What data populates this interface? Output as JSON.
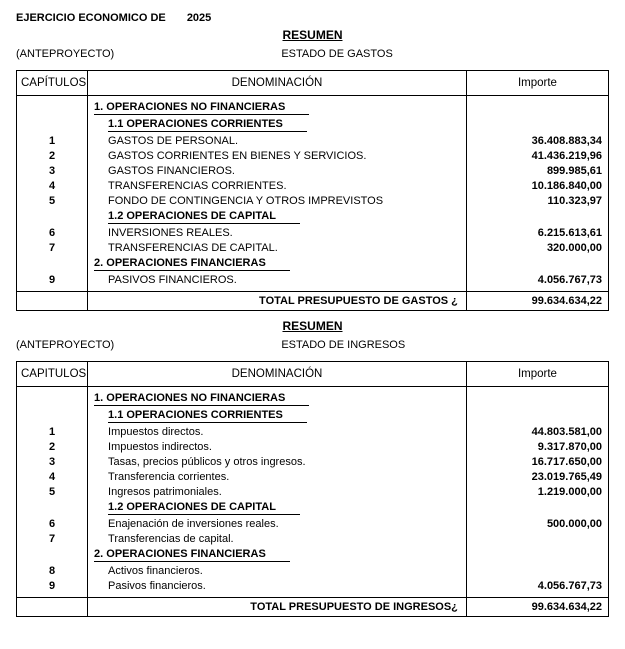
{
  "header": {
    "exercise_label": "EJERCICIO ECONOMICO DE",
    "year": "2025",
    "resumen": "RESUMEN",
    "anteproyecto": "(ANTEPROYECTO)"
  },
  "columns": {
    "cap": "CAPÍTULOS",
    "cap2": "CAPITULOS",
    "den": "DENOMINACIÓN",
    "imp": "Importe"
  },
  "gastos": {
    "estado": "ESTADO DE GASTOS",
    "rows": [
      {
        "type": "h0",
        "label": "1. OPERACIONES NO FINANCIERAS"
      },
      {
        "type": "h1",
        "label": "1.1 OPERACIONES CORRIENTES"
      },
      {
        "type": "item",
        "cap": "1",
        "label": "GASTOS DE PERSONAL.",
        "amount": "36.408.883,34"
      },
      {
        "type": "item",
        "cap": "2",
        "label": "GASTOS CORRIENTES EN BIENES Y SERVICIOS.",
        "amount": "41.436.219,96"
      },
      {
        "type": "item",
        "cap": "3",
        "label": "GASTOS FINANCIEROS.",
        "amount": "899.985,61"
      },
      {
        "type": "item",
        "cap": "4",
        "label": "TRANSFERENCIAS CORRIENTES.",
        "amount": "10.186.840,00"
      },
      {
        "type": "item",
        "cap": "5",
        "label": "FONDO DE CONTINGENCIA Y OTROS IMPREVISTOS",
        "amount": "110.323,97"
      },
      {
        "type": "h1",
        "label": "1.2 OPERACIONES DE CAPITAL"
      },
      {
        "type": "item",
        "cap": "6",
        "label": "INVERSIONES REALES.",
        "amount": "6.215.613,61"
      },
      {
        "type": "item",
        "cap": "7",
        "label": "TRANSFERENCIAS DE CAPITAL.",
        "amount": "320.000,00"
      },
      {
        "type": "h0",
        "label": "2. OPERACIONES FINANCIERAS"
      },
      {
        "type": "item",
        "cap": "9",
        "label": "PASIVOS FINANCIEROS.",
        "amount": "4.056.767,73"
      }
    ],
    "total_label": "TOTAL PRESUPUESTO DE GASTOS ¿",
    "total_amount": "99.634.634,22"
  },
  "ingresos": {
    "estado": "ESTADO DE INGRESOS",
    "rows": [
      {
        "type": "h0",
        "label": "1. OPERACIONES NO FINANCIERAS"
      },
      {
        "type": "h1",
        "label": "1.1 OPERACIONES CORRIENTES"
      },
      {
        "type": "item",
        "cap": "1",
        "label": "Impuestos directos.",
        "amount": "44.803.581,00"
      },
      {
        "type": "item",
        "cap": "2",
        "label": "Impuestos indirectos.",
        "amount": "9.317.870,00"
      },
      {
        "type": "item",
        "cap": "3",
        "label": "Tasas, precios públicos y otros ingresos.",
        "amount": "16.717.650,00"
      },
      {
        "type": "item",
        "cap": "4",
        "label": "Transferencia corrientes.",
        "amount": "23.019.765,49"
      },
      {
        "type": "item",
        "cap": "5",
        "label": "Ingresos patrimoniales.",
        "amount": "1.219.000,00"
      },
      {
        "type": "h1",
        "label": "1.2 OPERACIONES DE CAPITAL"
      },
      {
        "type": "item",
        "cap": "6",
        "label": "Enajenación de inversiones reales.",
        "amount": "500.000,00"
      },
      {
        "type": "item",
        "cap": "7",
        "label": "Transferencias de capital.",
        "amount": ""
      },
      {
        "type": "h0",
        "label": "2. OPERACIONES FINANCIERAS"
      },
      {
        "type": "item",
        "cap": "8",
        "label": "Activos financieros.",
        "amount": ""
      },
      {
        "type": "item",
        "cap": "9",
        "label": "Pasivos financieros.",
        "amount": "4.056.767,73"
      }
    ],
    "total_label": "TOTAL PRESUPUESTO DE INGRESOS¿",
    "total_amount": "99.634.634,22"
  }
}
